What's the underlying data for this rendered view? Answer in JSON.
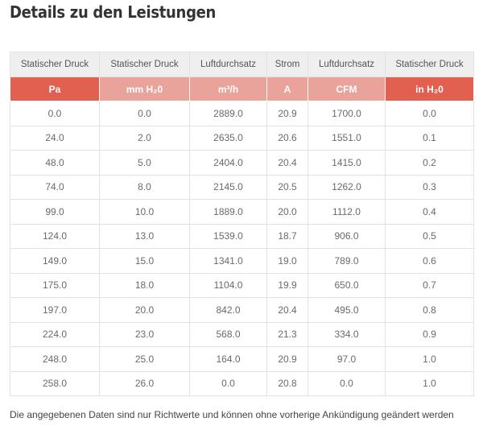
{
  "title": "Details zu den Leistungen",
  "columns": [
    "Statischer Druck",
    "Statischer Druck",
    "Luftdurchsatz",
    "Strom",
    "Luftdurchsatz",
    "Statischer Druck"
  ],
  "units": [
    "Pa",
    "mm H₂0",
    "m³/h",
    "A",
    "CFM",
    "in H₂0"
  ],
  "rows": [
    [
      "0.0",
      "0.0",
      "2889.0",
      "20.9",
      "1700.0",
      "0.0"
    ],
    [
      "24.0",
      "2.0",
      "2635.0",
      "20.6",
      "1551.0",
      "0.1"
    ],
    [
      "48.0",
      "5.0",
      "2404.0",
      "20.4",
      "1415.0",
      "0.2"
    ],
    [
      "74.0",
      "8.0",
      "2145.0",
      "20.5",
      "1262.0",
      "0.3"
    ],
    [
      "99.0",
      "10.0",
      "1889.0",
      "20.0",
      "1112.0",
      "0.4"
    ],
    [
      "124.0",
      "13.0",
      "1539.0",
      "18.7",
      "906.0",
      "0.5"
    ],
    [
      "149.0",
      "15.0",
      "1341.0",
      "19.0",
      "789.0",
      "0.6"
    ],
    [
      "175.0",
      "18.0",
      "1104.0",
      "19.9",
      "650.0",
      "0.7"
    ],
    [
      "197.0",
      "20.0",
      "842.0",
      "20.4",
      "495.0",
      "0.8"
    ],
    [
      "224.0",
      "23.0",
      "568.0",
      "21.3",
      "334.0",
      "0.9"
    ],
    [
      "248.0",
      "25.0",
      "164.0",
      "20.9",
      "97.0",
      "1.0"
    ],
    [
      "258.0",
      "26.0",
      "0.0",
      "20.8",
      "0.0",
      "1.0"
    ]
  ],
  "note": "Die angegebenen Daten sind nur Richtwerte und können ohne vorherige Ankündigung geändert werden",
  "colors": {
    "unit_header_dark": "#e2604f",
    "unit_header_light": "#eaa39b",
    "label_header_bg": "#efefef"
  }
}
